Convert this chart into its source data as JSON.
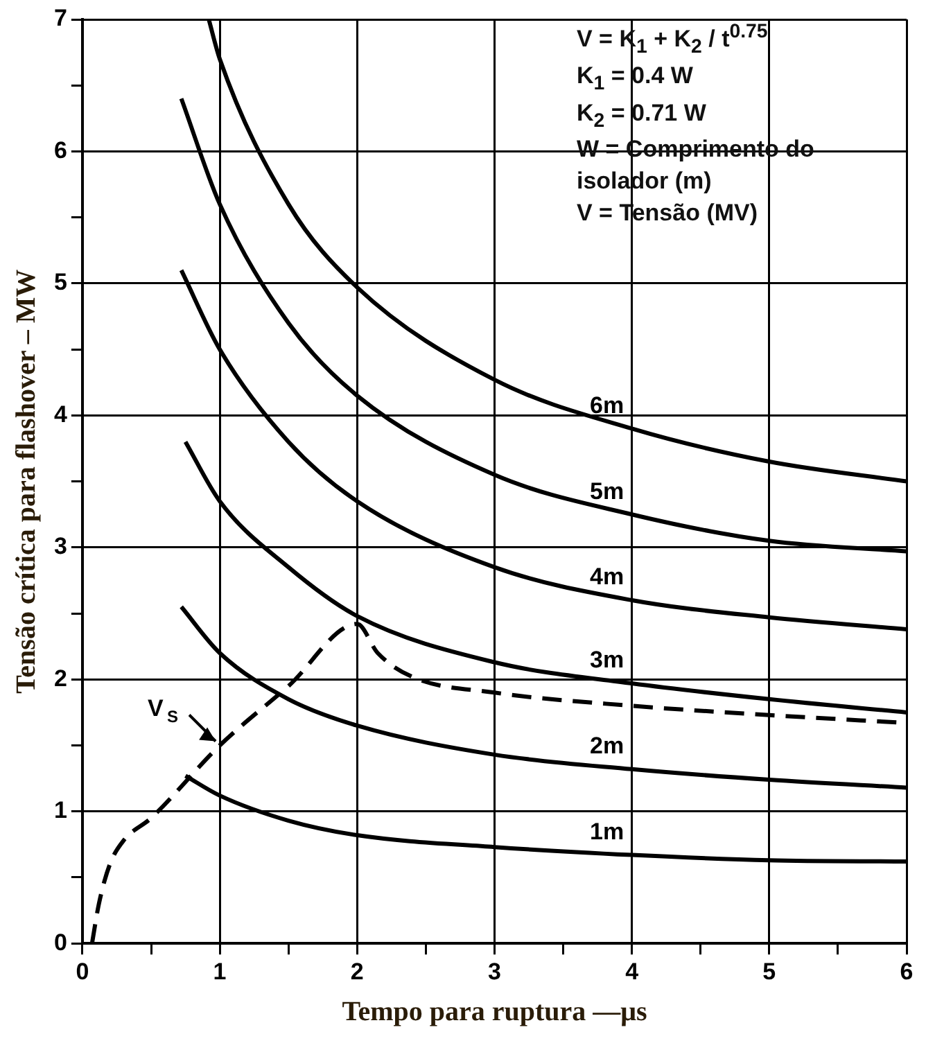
{
  "chart_data": {
    "type": "line",
    "xlabel": "Tempo para ruptura —μs",
    "ylabel": "Tensão crítica para flashover – MW",
    "xlim": [
      0,
      6
    ],
    "ylim": [
      0,
      7
    ],
    "xticks": [
      0,
      {
        "value": 0.5,
        "label": null
      },
      1,
      {
        "value": 1.5,
        "label": null
      },
      2,
      {
        "value": 2.5,
        "label": null
      },
      3,
      {
        "value": 3.5,
        "label": null
      },
      4,
      {
        "value": 4.5,
        "label": null
      },
      5,
      {
        "value": 5.5,
        "label": null
      },
      6
    ],
    "yticks": [
      0,
      {
        "value": 0.5,
        "label": null
      },
      1,
      {
        "value": 1.5,
        "label": null
      },
      2,
      {
        "value": 2.5,
        "label": null
      },
      3,
      {
        "value": 3.5,
        "label": null
      },
      4,
      {
        "value": 4.5,
        "label": null
      },
      5,
      {
        "value": 5.5,
        "label": null
      },
      6,
      {
        "value": 6.5,
        "label": null
      },
      7
    ],
    "grid": true,
    "legend": false,
    "marker": "none",
    "series": [
      {
        "name": "1m",
        "color": "#000000",
        "line_style": "solid",
        "x": [
          0.75,
          1,
          1.5,
          2,
          3,
          4,
          5,
          6
        ],
        "values": [
          1.27,
          1.12,
          0.93,
          0.82,
          0.73,
          0.67,
          0.63,
          0.62
        ]
      },
      {
        "name": "2m",
        "color": "#000000",
        "line_style": "solid",
        "x": [
          0.72,
          1,
          1.5,
          2,
          3,
          4,
          5,
          6
        ],
        "values": [
          2.55,
          2.2,
          1.85,
          1.65,
          1.43,
          1.32,
          1.24,
          1.18
        ]
      },
      {
        "name": "3m",
        "color": "#000000",
        "line_style": "solid",
        "x": [
          0.75,
          1,
          1.5,
          2,
          3,
          4,
          5,
          6
        ],
        "values": [
          3.8,
          3.35,
          2.85,
          2.48,
          2.13,
          1.97,
          1.85,
          1.75
        ]
      },
      {
        "name": "4m",
        "color": "#000000",
        "line_style": "solid",
        "x": [
          0.72,
          1,
          1.5,
          2,
          3,
          4,
          5,
          6
        ],
        "values": [
          5.1,
          4.5,
          3.8,
          3.35,
          2.85,
          2.6,
          2.47,
          2.38
        ]
      },
      {
        "name": "5m",
        "color": "#000000",
        "line_style": "solid",
        "x": [
          0.72,
          1,
          1.5,
          2,
          3,
          4,
          5,
          6
        ],
        "values": [
          6.4,
          5.6,
          4.7,
          4.15,
          3.55,
          3.25,
          3.05,
          2.97
        ]
      },
      {
        "name": "6m",
        "color": "#000000",
        "line_style": "solid",
        "x": [
          0.92,
          1,
          1.5,
          2,
          3,
          4,
          5,
          6
        ],
        "values": [
          7.0,
          6.7,
          5.6,
          4.97,
          4.27,
          3.9,
          3.65,
          3.5
        ]
      },
      {
        "name": "V$_{S}$",
        "color": "#000000",
        "line_style": "dashed",
        "x": [
          0.07,
          0.12,
          0.2,
          0.3,
          0.5,
          1,
          1.5,
          2,
          2.15,
          2.4,
          3,
          4,
          5,
          6
        ],
        "values": [
          0,
          0.3,
          0.6,
          0.78,
          0.95,
          1.5,
          1.95,
          2.42,
          2.2,
          2.02,
          1.9,
          1.8,
          1.73,
          1.67
        ]
      }
    ],
    "annotations": [
      "V = K$_{1}$ + K$_{2}$ / t$^{0.75}$",
      "K$_{1}$ = 0.4 W",
      "K$_{2}$ = 0.71 W",
      "W = Comprimento do isolador (m)",
      "V = Tensão (MV)"
    ]
  }
}
